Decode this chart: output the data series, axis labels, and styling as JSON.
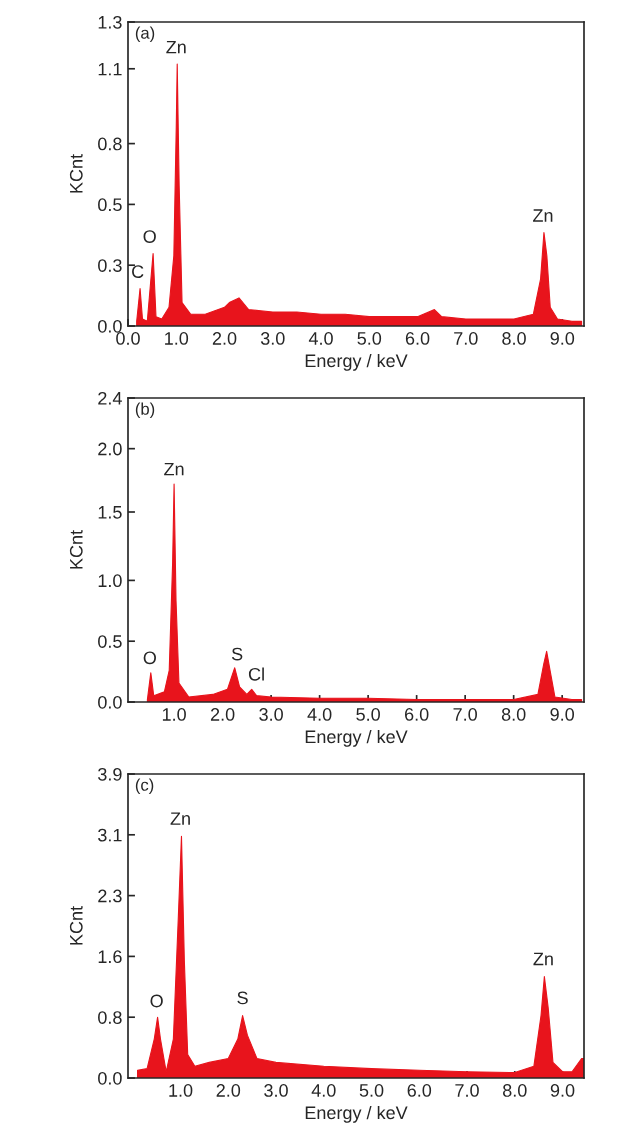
{
  "chart_data": [
    {
      "type": "area",
      "xlabel": "Energy / keV",
      "ylabel": "KCnt",
      "annotations": [
        "(a)",
        {
          "text": "C",
          "x": 0.2,
          "y": 0.19
        },
        {
          "text": "O",
          "x": 0.45,
          "y": 0.34
        },
        {
          "text": "Zn",
          "x": 1.0,
          "y": 1.15
        },
        {
          "text": "Zn",
          "x": 8.6,
          "y": 0.43
        }
      ],
      "xlim": [
        0,
        9.45
      ],
      "xticks": [
        {
          "value": 0,
          "label": "0.0"
        },
        {
          "value": 1,
          "label": "1.0"
        },
        {
          "value": 2,
          "label": "2.0"
        },
        {
          "value": 3,
          "label": "3.0"
        },
        {
          "value": 4,
          "label": "4.0"
        },
        {
          "value": 5,
          "label": "5.0"
        },
        {
          "value": 6,
          "label": "6.0"
        },
        {
          "value": 7,
          "label": "7.0"
        },
        {
          "value": 8,
          "label": "8.0"
        },
        {
          "value": 9,
          "label": "9.0"
        }
      ],
      "ylim": [
        0,
        1.3
      ],
      "yticks": [
        {
          "value": 0,
          "label": "0.0"
        },
        {
          "value": 0.26,
          "label": "0.3"
        },
        {
          "value": 0.52,
          "label": "0.5"
        },
        {
          "value": 0.78,
          "label": "0.8"
        },
        {
          "value": 1.1,
          "label": "1.1"
        },
        {
          "value": 1.3,
          "label": "1.3"
        }
      ],
      "series": [
        {
          "color": "#e8141c",
          "x": [
            0.18,
            0.25,
            0.3,
            0.4,
            0.52,
            0.58,
            0.7,
            0.85,
            0.95,
            1.0,
            1.02,
            1.06,
            1.12,
            1.3,
            1.6,
            2.0,
            2.1,
            2.3,
            2.5,
            3.0,
            3.5,
            4.0,
            4.5,
            5.0,
            5.5,
            6.0,
            6.35,
            6.5,
            7.0,
            7.5,
            8.0,
            8.4,
            8.55,
            8.62,
            8.68,
            8.75,
            8.9,
            9.2,
            9.4
          ],
          "values": [
            0.02,
            0.16,
            0.03,
            0.02,
            0.31,
            0.04,
            0.03,
            0.08,
            0.3,
            0.85,
            1.12,
            0.6,
            0.1,
            0.05,
            0.05,
            0.08,
            0.1,
            0.12,
            0.07,
            0.06,
            0.06,
            0.05,
            0.05,
            0.04,
            0.04,
            0.04,
            0.07,
            0.04,
            0.03,
            0.03,
            0.03,
            0.05,
            0.2,
            0.4,
            0.3,
            0.08,
            0.03,
            0.02,
            0.02
          ]
        }
      ]
    },
    {
      "type": "area",
      "xlabel": "Energy / keV",
      "ylabel": "KCnt",
      "annotations": [
        "(b)",
        {
          "text": "O",
          "x": 0.5,
          "y": 0.27
        },
        {
          "text": "Zn",
          "x": 1.0,
          "y": 1.76
        },
        {
          "text": "S",
          "x": 2.3,
          "y": 0.3
        },
        {
          "text": "Cl",
          "x": 2.7,
          "y": 0.14
        }
      ],
      "xlim": [
        0.05,
        9.45
      ],
      "xticks": [
        {
          "value": 1,
          "label": "1.0"
        },
        {
          "value": 2,
          "label": "2.0"
        },
        {
          "value": 3,
          "label": "3.0"
        },
        {
          "value": 4,
          "label": "4.0"
        },
        {
          "value": 5,
          "label": "5.0"
        },
        {
          "value": 6,
          "label": "6.0"
        },
        {
          "value": 7,
          "label": "7.0"
        },
        {
          "value": 8,
          "label": "8.0"
        },
        {
          "value": 9,
          "label": "9.0"
        }
      ],
      "ylim": [
        0,
        2.4
      ],
      "yticks": [
        {
          "value": 0,
          "label": "0.0"
        },
        {
          "value": 0.48,
          "label": "0.5"
        },
        {
          "value": 0.96,
          "label": "1.0"
        },
        {
          "value": 1.5,
          "label": "1.5"
        },
        {
          "value": 2.0,
          "label": "2.0"
        },
        {
          "value": 2.4,
          "label": "2.4"
        }
      ],
      "series": [
        {
          "color": "#e8141c",
          "x": [
            0.45,
            0.52,
            0.58,
            0.8,
            0.9,
            0.97,
            1.0,
            1.04,
            1.1,
            1.3,
            1.8,
            2.1,
            2.25,
            2.35,
            2.5,
            2.6,
            2.7,
            3.0,
            4.0,
            5.0,
            6.0,
            7.0,
            8.0,
            8.5,
            8.62,
            8.68,
            8.75,
            8.85,
            9.2,
            9.4
          ],
          "values": [
            0.02,
            0.23,
            0.05,
            0.08,
            0.25,
            1.1,
            1.72,
            0.8,
            0.15,
            0.04,
            0.06,
            0.1,
            0.27,
            0.12,
            0.06,
            0.1,
            0.05,
            0.04,
            0.03,
            0.03,
            0.02,
            0.02,
            0.02,
            0.06,
            0.3,
            0.4,
            0.25,
            0.04,
            0.02,
            0.02
          ]
        }
      ]
    },
    {
      "type": "area",
      "xlabel": "Energy / keV",
      "ylabel": "KCnt",
      "annotations": [
        "(c)",
        {
          "text": "O",
          "x": 0.5,
          "y": 0.86
        },
        {
          "text": "Zn",
          "x": 1.0,
          "y": 3.2
        },
        {
          "text": "S",
          "x": 2.3,
          "y": 0.9
        },
        {
          "text": "Zn",
          "x": 8.6,
          "y": 1.4
        }
      ],
      "xlim": [
        -0.1,
        9.45
      ],
      "xticks": [
        {
          "value": 1,
          "label": "1.0"
        },
        {
          "value": 2,
          "label": "2.0"
        },
        {
          "value": 3,
          "label": "3.0"
        },
        {
          "value": 4,
          "label": "4.0"
        },
        {
          "value": 5,
          "label": "5.0"
        },
        {
          "value": 6,
          "label": "6.0"
        },
        {
          "value": 7,
          "label": "7.0"
        },
        {
          "value": 8,
          "label": "8.0"
        },
        {
          "value": 9,
          "label": "9.0"
        }
      ],
      "ylim": [
        0,
        3.9
      ],
      "yticks": [
        {
          "value": 0,
          "label": "0.0"
        },
        {
          "value": 0.78,
          "label": "0.8"
        },
        {
          "value": 1.56,
          "label": "1.6"
        },
        {
          "value": 2.34,
          "label": "2.3"
        },
        {
          "value": 3.12,
          "label": "3.1"
        },
        {
          "value": 3.9,
          "label": "3.9"
        }
      ],
      "series": [
        {
          "color": "#e8141c",
          "x": [
            0.1,
            0.3,
            0.45,
            0.52,
            0.58,
            0.7,
            0.85,
            0.95,
            1.02,
            1.08,
            1.15,
            1.3,
            1.6,
            2.0,
            2.2,
            2.3,
            2.4,
            2.6,
            3.0,
            4.0,
            5.0,
            6.0,
            7.0,
            8.0,
            8.4,
            8.55,
            8.62,
            8.7,
            8.8,
            9.0,
            9.2,
            9.4,
            9.45
          ],
          "values": [
            0.1,
            0.12,
            0.5,
            0.78,
            0.5,
            0.08,
            0.5,
            2.0,
            3.1,
            1.5,
            0.3,
            0.15,
            0.2,
            0.25,
            0.5,
            0.8,
            0.55,
            0.25,
            0.2,
            0.15,
            0.12,
            0.1,
            0.08,
            0.07,
            0.15,
            0.8,
            1.3,
            0.9,
            0.2,
            0.08,
            0.08,
            0.25,
            0.25
          ]
        }
      ]
    }
  ]
}
